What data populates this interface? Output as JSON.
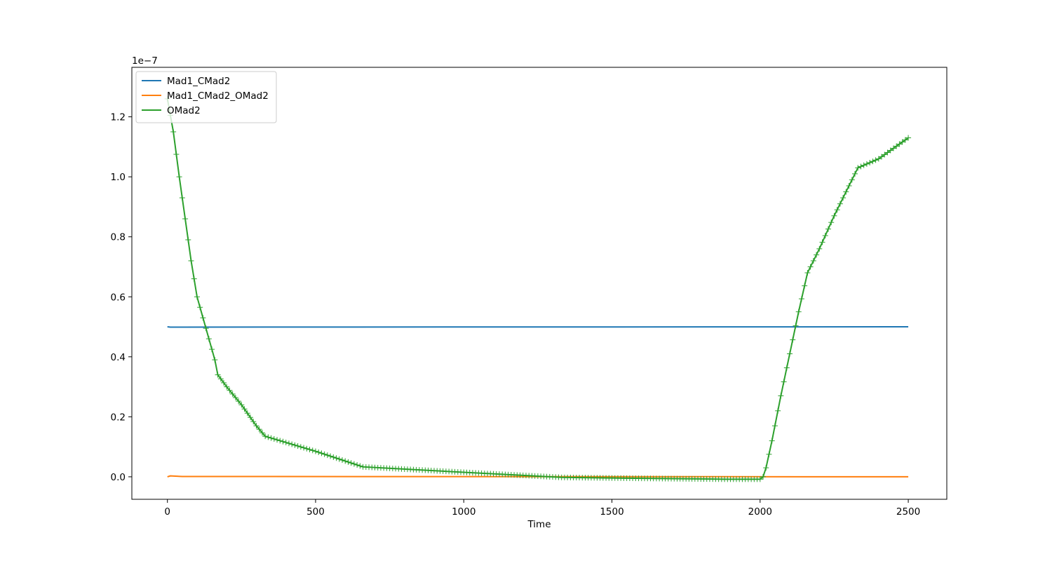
{
  "chart_data": {
    "type": "line",
    "title": "",
    "xlabel": "Time",
    "ylabel": "",
    "y_offset_label": "1e−7",
    "y_scale": 1e-07,
    "xlim": [
      -120,
      2630
    ],
    "ylim": [
      -0.075,
      1.365
    ],
    "x_ticks": [
      0,
      500,
      1000,
      1500,
      2000,
      2500
    ],
    "x_tick_labels": [
      "0",
      "500",
      "1000",
      "1500",
      "2000",
      "2500"
    ],
    "y_ticks": [
      0.0,
      0.2,
      0.4,
      0.6,
      0.8,
      1.0,
      1.2
    ],
    "y_tick_labels": [
      "0.0",
      "0.2",
      "0.4",
      "0.6",
      "0.8",
      "1.0",
      "1.2"
    ],
    "grid": false,
    "legend_position": "top-left",
    "series": [
      {
        "name": "Mad1_CMad2",
        "color": "#1f77b4",
        "marker": "none",
        "x": [
          0,
          10,
          2500
        ],
        "y": [
          0.5,
          0.499,
          0.5
        ]
      },
      {
        "name": "Mad1_CMad2_OMad2",
        "color": "#ff7f0e",
        "marker": "none",
        "x": [
          0,
          10,
          50,
          2500
        ],
        "y": [
          0.0,
          0.003,
          0.001,
          0.0
        ]
      },
      {
        "name": "OMad2",
        "color": "#2ca02c",
        "marker": "+",
        "x": [
          0,
          20,
          40,
          60,
          80,
          100,
          120,
          140,
          160,
          170,
          200,
          250,
          300,
          330,
          500,
          660,
          1000,
          1330,
          1580,
          1880,
          2000,
          2010,
          2020,
          2040,
          2070,
          2100,
          2130,
          2160,
          2200,
          2250,
          2300,
          2330,
          2400,
          2500
        ],
        "y": [
          1.26,
          1.15,
          1.0,
          0.86,
          0.72,
          0.6,
          0.53,
          0.46,
          0.39,
          0.34,
          0.3,
          0.24,
          0.17,
          0.135,
          0.085,
          0.033,
          0.015,
          -0.002,
          -0.005,
          -0.008,
          -0.008,
          0.0,
          0.03,
          0.12,
          0.27,
          0.41,
          0.55,
          0.68,
          0.76,
          0.87,
          0.97,
          1.03,
          1.06,
          1.13
        ]
      }
    ]
  }
}
